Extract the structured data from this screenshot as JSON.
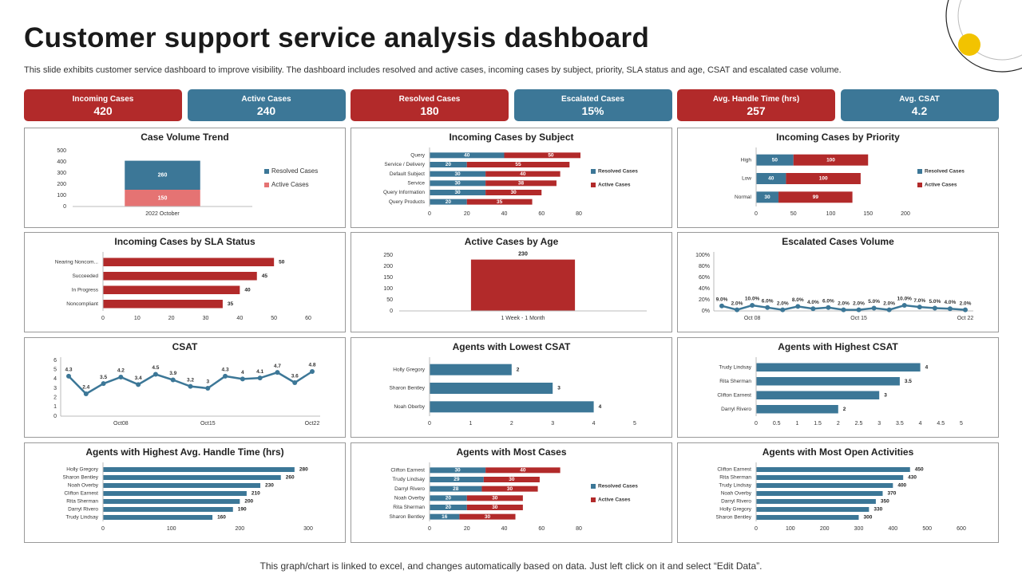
{
  "header": {
    "title": "Customer support service analysis dashboard",
    "subtitle": "This slide exhibits customer service dashboard to improve visibility. The dashboard includes resolved and active cases, incoming cases by subject, priority, SLA status and age, CSAT and escalated case volume."
  },
  "kpis": [
    {
      "label": "Incoming Cases",
      "value": "420",
      "color": "#b22a2a"
    },
    {
      "label": "Active Cases",
      "value": "240",
      "color": "#3c7797"
    },
    {
      "label": "Resolved Cases",
      "value": "180",
      "color": "#b22a2a"
    },
    {
      "label": "Escalated Cases",
      "value": "15%",
      "color": "#3c7797"
    },
    {
      "label": "Avg. Handle Time (hrs)",
      "value": "257",
      "color": "#b22a2a"
    },
    {
      "label": "Avg. CSAT",
      "value": "4.2",
      "color": "#3c7797"
    }
  ],
  "chart_data": [
    {
      "type": "bar",
      "title": "Case Volume Trend",
      "categories": [
        "2022 October"
      ],
      "series": [
        {
          "name": "Active Cases",
          "color": "#e57373",
          "values": [
            150
          ]
        },
        {
          "name": "Resolved Cases",
          "color": "#3c7797",
          "values": [
            260
          ]
        }
      ],
      "ylim": [
        0,
        500
      ],
      "yticks": [
        0,
        100,
        200,
        300,
        400,
        500
      ],
      "legend": "right",
      "data_labels": true
    },
    {
      "type": "bar",
      "horizontal": true,
      "title": "Incoming Cases by Subject",
      "categories": [
        "Query",
        "Service / Delivery",
        "Default Subject",
        "Service",
        "Query Information",
        "Query Products"
      ],
      "series": [
        {
          "name": "Resolved Cases",
          "color": "#3c7797",
          "values": [
            40,
            20,
            30,
            30,
            30,
            20
          ]
        },
        {
          "name": "Active Cases",
          "color": "#b22a2a",
          "values": [
            50,
            55,
            40,
            38,
            30,
            35
          ]
        }
      ],
      "xlim": [
        0,
        80
      ],
      "xticks": [
        0,
        20,
        40,
        60,
        80
      ],
      "legend": "right",
      "data_labels": true
    },
    {
      "type": "bar",
      "horizontal": true,
      "title": "Incoming Cases by Priority",
      "categories": [
        "High",
        "Low",
        "Normal"
      ],
      "series": [
        {
          "name": "Resolved Cases",
          "color": "#3c7797",
          "values": [
            50,
            40,
            30
          ]
        },
        {
          "name": "Active Cases",
          "color": "#b22a2a",
          "values": [
            100,
            100,
            99
          ]
        }
      ],
      "xlim": [
        0,
        200
      ],
      "xticks": [
        0,
        50,
        100,
        150,
        200
      ],
      "legend": "right",
      "data_labels": true
    },
    {
      "type": "bar",
      "horizontal": true,
      "title": "Incoming Cases by SLA Status",
      "categories": [
        "Nearing Noncom...",
        "Succeeded",
        "In Progress",
        "Noncompliant"
      ],
      "values": [
        50,
        45,
        40,
        35
      ],
      "color": "#b22a2a",
      "xlim": [
        0,
        60
      ],
      "xticks": [
        0,
        10,
        20,
        30,
        40,
        50,
        60
      ],
      "data_labels": true
    },
    {
      "type": "bar",
      "title": "Active Cases by Age",
      "categories": [
        "1 Week - 1 Month"
      ],
      "values": [
        230
      ],
      "color": "#b22a2a",
      "ylim": [
        0,
        250
      ],
      "yticks": [
        0,
        50,
        100,
        150,
        200,
        250
      ],
      "data_labels": true
    },
    {
      "type": "line",
      "title": "Escalated Cases Volume",
      "categories": [
        null,
        null,
        "Oct 08",
        null,
        null,
        null,
        null,
        null,
        null,
        "Oct 15",
        null,
        null,
        null,
        null,
        null,
        null,
        "Oct 22"
      ],
      "values": [
        9,
        2,
        10,
        6,
        2,
        8,
        4,
        6,
        2,
        2,
        5,
        2,
        10,
        7,
        5,
        4,
        2
      ],
      "value_labels": [
        "9.0%",
        "2.0%",
        "10.0%",
        "6.0%",
        "2.0%",
        "8.0%",
        "4.0%",
        "6.0%",
        "2.0%",
        "2.0%",
        "5.0%",
        "2.0%",
        "10.0%",
        "7.0%",
        "5.0%",
        "4.0%",
        "2.0%"
      ],
      "color": "#3c7797",
      "ylim": [
        0,
        100
      ],
      "yticks": [
        {
          "value": 0,
          "label": "0%"
        },
        {
          "value": 20,
          "label": "20%"
        },
        {
          "value": 40,
          "label": "40%"
        },
        {
          "value": 60,
          "label": "60%"
        },
        {
          "value": 80,
          "label": "80%"
        },
        {
          "value": 100,
          "label": "100%"
        }
      ],
      "data_labels": true
    },
    {
      "type": "line",
      "title": "CSAT",
      "categories": [
        null,
        null,
        null,
        "Oct08",
        null,
        null,
        null,
        null,
        "Oct15",
        null,
        null,
        null,
        null,
        null,
        "Oct22"
      ],
      "values": [
        4.3,
        2.4,
        3.5,
        4.2,
        3.4,
        4.5,
        3.9,
        3.2,
        3,
        4.3,
        4,
        4.1,
        4.7,
        3.6,
        4.8
      ],
      "color": "#3c7797",
      "ylim": [
        0,
        6
      ],
      "yticks": [
        0,
        1,
        2,
        3,
        4,
        5,
        6
      ],
      "data_labels": true
    },
    {
      "type": "bar",
      "horizontal": true,
      "title": "Agents with Lowest CSAT",
      "categories": [
        "Holly Gregory",
        "Sharon Bentley",
        "Noah Oberby"
      ],
      "values": [
        2,
        3,
        4
      ],
      "color": "#3c7797",
      "xlim": [
        0,
        5
      ],
      "xticks": [
        0,
        1,
        2,
        3,
        4,
        5
      ],
      "data_labels": true
    },
    {
      "type": "bar",
      "horizontal": true,
      "title": "Agents with Highest CSAT",
      "categories": [
        "Trudy Lindsay",
        "Rita Sherman",
        "Clifton Earnest",
        "Darryl Rivero"
      ],
      "values": [
        4,
        3.5,
        3,
        2
      ],
      "color": "#3c7797",
      "xlim": [
        0,
        5
      ],
      "xticks": [
        0,
        0.5,
        1,
        1.5,
        2,
        2.5,
        3,
        3.5,
        4,
        4.5,
        5
      ],
      "data_labels": true
    },
    {
      "type": "bar",
      "horizontal": true,
      "title": "Agents with Highest Avg. Handle Time (hrs)",
      "categories": [
        "Holly Gregory",
        "Sharon Bentley",
        "Noah Overby",
        "Clifton Earnest",
        "Rita Sherman",
        "Darryl Rivero",
        "Trudy Lindsay"
      ],
      "values": [
        280,
        260,
        230,
        210,
        200,
        190,
        160
      ],
      "color": "#3c7797",
      "xlim": [
        0,
        300
      ],
      "xticks": [
        0,
        100,
        200,
        300
      ],
      "data_labels": true
    },
    {
      "type": "bar",
      "horizontal": true,
      "title": "Agents with Most Cases",
      "categories": [
        "Clifton Earnest",
        "Trudy Lindsay",
        "Darryl Rivero",
        "Noah Overby",
        "Rita Sherman",
        "Sharon Bentley"
      ],
      "series": [
        {
          "name": "Resolved Cases",
          "color": "#3c7797",
          "values": [
            30,
            29,
            28,
            20,
            20,
            16
          ]
        },
        {
          "name": "Active Cases",
          "color": "#b22a2a",
          "values": [
            40,
            30,
            30,
            30,
            30,
            30
          ]
        }
      ],
      "xlim": [
        0,
        80
      ],
      "xticks": [
        0,
        20,
        40,
        60,
        80
      ],
      "legend": "right",
      "data_labels": true
    },
    {
      "type": "bar",
      "horizontal": true,
      "title": "Agents with Most Open Activities",
      "categories": [
        "Clifton Earnest",
        "Rita Sherman",
        "Trudy Lindsay",
        "Noah Overby",
        "Darryl Rivero",
        "Holly Gregory",
        "Sharon Bentley"
      ],
      "values": [
        450,
        430,
        400,
        370,
        350,
        330,
        300
      ],
      "color": "#3c7797",
      "xlim": [
        0,
        600
      ],
      "xticks": [
        0,
        100,
        200,
        300,
        400,
        500,
        600
      ],
      "data_labels": true
    }
  ],
  "footer": "This graph/chart is linked to excel, and changes automatically based on data. Just left click on it and select “Edit Data”."
}
